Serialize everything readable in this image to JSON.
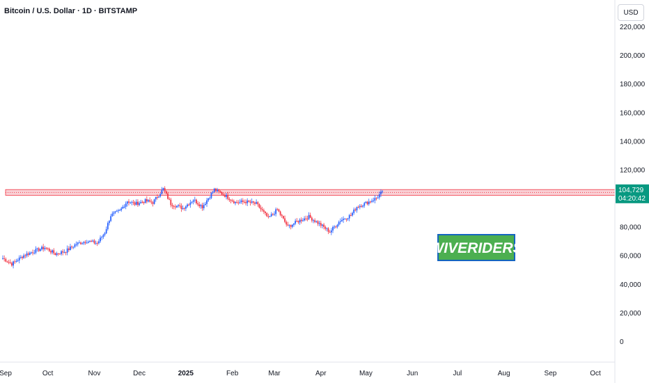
{
  "header": {
    "title": "Bitcoin / U.S. Dollar · 1D · BITSTAMP",
    "currency": "USD"
  },
  "price_scale": {
    "labels": [
      "220,000",
      "200,000",
      "180,000",
      "160,000",
      "140,000",
      "120,000",
      "80,000",
      "60,000",
      "40,000",
      "20,000",
      "0"
    ],
    "current_price": "104,729",
    "countdown": "04:20:42"
  },
  "time_axis": {
    "labels": [
      "Sep",
      "Oct",
      "Nov",
      "Dec",
      "2025",
      "Feb",
      "Mar",
      "Apr",
      "May",
      "Jun",
      "Jul",
      "Aug",
      "Sep",
      "Oct"
    ]
  },
  "watermark": {
    "text": "WIVERIDERS"
  },
  "colors": {
    "up": "#2962ff",
    "down": "#f23645",
    "zone_fill": "#f8c9cf",
    "zone_border": "#f23645",
    "watermark_bg": "#4caf50",
    "watermark_border": "#1565c0",
    "price_badge": "#089981"
  },
  "chart_data": {
    "type": "candlestick",
    "title": "Bitcoin / U.S. Dollar · 1D · BITSTAMP",
    "ylim": [
      0,
      220000
    ],
    "x_range": [
      "2024-09-01",
      "2025-10-31"
    ],
    "resistance_zone": [
      102000,
      106000
    ],
    "last_price": 104729,
    "series": [
      {
        "name": "BTC/USD",
        "points": [
          {
            "date": "2024-09-01",
            "close": 58000
          },
          {
            "date": "2024-09-07",
            "close": 54000
          },
          {
            "date": "2024-09-15",
            "close": 60000
          },
          {
            "date": "2024-09-22",
            "close": 63000
          },
          {
            "date": "2024-09-29",
            "close": 65500
          },
          {
            "date": "2024-10-06",
            "close": 61000
          },
          {
            "date": "2024-10-13",
            "close": 63000
          },
          {
            "date": "2024-10-20",
            "close": 68000
          },
          {
            "date": "2024-10-27",
            "close": 70000
          },
          {
            "date": "2024-11-03",
            "close": 68500
          },
          {
            "date": "2024-11-08",
            "close": 76000
          },
          {
            "date": "2024-11-12",
            "close": 88000
          },
          {
            "date": "2024-11-18",
            "close": 91000
          },
          {
            "date": "2024-11-23",
            "close": 98000
          },
          {
            "date": "2024-11-28",
            "close": 96000
          },
          {
            "date": "2024-12-05",
            "close": 98000
          },
          {
            "date": "2024-12-10",
            "close": 97000
          },
          {
            "date": "2024-12-17",
            "close": 106500
          },
          {
            "date": "2024-12-22",
            "close": 96000
          },
          {
            "date": "2024-12-30",
            "close": 93000
          },
          {
            "date": "2025-01-06",
            "close": 99000
          },
          {
            "date": "2025-01-12",
            "close": 94000
          },
          {
            "date": "2025-01-20",
            "close": 106000
          },
          {
            "date": "2025-01-27",
            "close": 102000
          },
          {
            "date": "2025-02-03",
            "close": 97000
          },
          {
            "date": "2025-02-10",
            "close": 97500
          },
          {
            "date": "2025-02-17",
            "close": 96000
          },
          {
            "date": "2025-02-25",
            "close": 86000
          },
          {
            "date": "2025-03-03",
            "close": 92000
          },
          {
            "date": "2025-03-10",
            "close": 80000
          },
          {
            "date": "2025-03-17",
            "close": 84000
          },
          {
            "date": "2025-03-24",
            "close": 87000
          },
          {
            "date": "2025-03-31",
            "close": 82000
          },
          {
            "date": "2025-04-07",
            "close": 76500
          },
          {
            "date": "2025-04-14",
            "close": 84500
          },
          {
            "date": "2025-04-21",
            "close": 88000
          },
          {
            "date": "2025-04-25",
            "close": 94000
          },
          {
            "date": "2025-05-01",
            "close": 96500
          },
          {
            "date": "2025-05-08",
            "close": 100000
          },
          {
            "date": "2025-05-12",
            "close": 104729
          }
        ]
      }
    ]
  }
}
